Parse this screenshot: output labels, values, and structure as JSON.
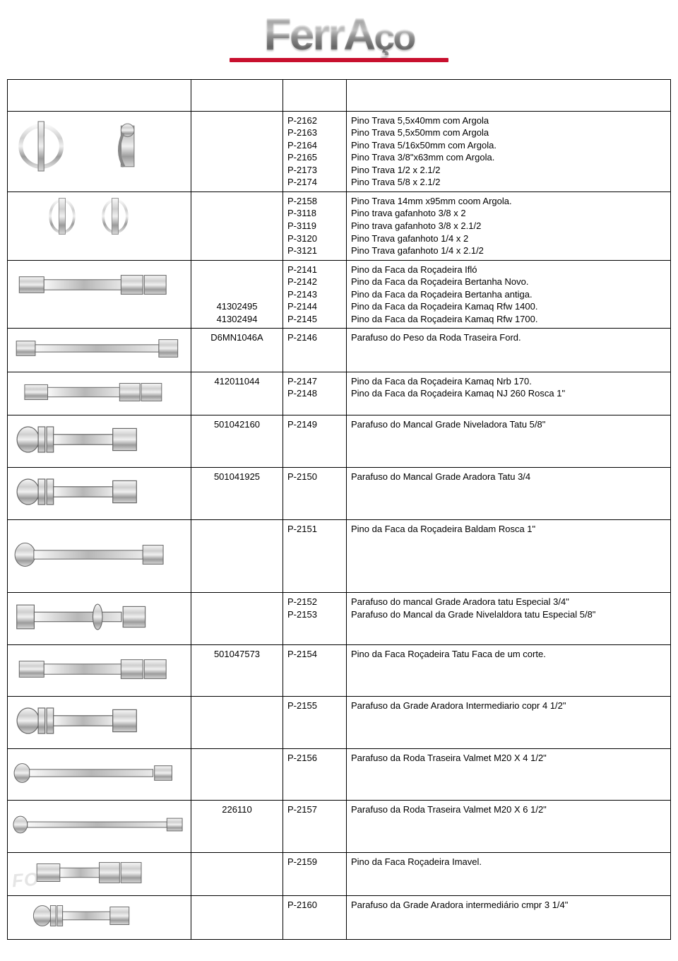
{
  "brand": {
    "name_html": "FerrAço",
    "part1": "Ferr",
    "part2": "A",
    "part3": "ço"
  },
  "colors": {
    "border": "#000000",
    "accent_red": "#c8102e",
    "metal_light": "#e8e8e8",
    "metal_mid": "#bfbfbf",
    "metal_dark": "#8a8a8a",
    "watermark": "rgba(180,180,180,.35)"
  },
  "table": {
    "columns": [
      "image",
      "oem",
      "code",
      "description"
    ],
    "rows": [
      {
        "img": "lynch-pin",
        "img_h": "tall",
        "oem": [
          ""
        ],
        "codes": [
          "P-2162",
          "P-2163",
          "P-2164",
          "P-2165",
          "P-2173",
          "P-2174"
        ],
        "descs": [
          "Pino Trava 5,5x40mm com Argola",
          "Pino Trava 5,5x50mm com Argola",
          "Pino Trava 5/16x50mm com Argola.",
          "Pino Trava 3/8\"x63mm com Argola.",
          "Pino Trava 1/2 x 2.1/2",
          "Pino Trava 5/8 x 2.1/2"
        ]
      },
      {
        "img": "wire-lock-pin",
        "img_h": "",
        "oem": [
          ""
        ],
        "codes": [
          "P-2158",
          "P-3118",
          "P-3119",
          "P-3120",
          "P-3121"
        ],
        "descs": [
          "Pino Trava 14mm x95mm coom Argola.",
          "Pino trava gafanhoto 3/8 x 2",
          "Pino trava gafanhoto 3/8 x 2.1/2",
          "Pino Trava gafanhoto 1/4 x 2",
          "Pino Trava gafanhoto 1/4 x 2.1/2"
        ]
      },
      {
        "img": "bolt-heavy",
        "img_h": "",
        "oem": [
          "",
          "",
          "",
          "41302495",
          "41302494"
        ],
        "codes": [
          "P-2141",
          "P-2142",
          "P-2143",
          "P-2144",
          "P-2145"
        ],
        "descs": [
          "Pino da Faca da Roçadeira Ifló",
          "Pino da Faca da Roçadeira Bertanha Novo.",
          "Pino da Faca da Roçadeira Bertanha antiga.",
          "Pino da Faca da Roçadeira Kamaq Rfw 1400.",
          "Pino da Faca da Roçadeira Kamaq Rfw 1700."
        ]
      },
      {
        "img": "bolt-long",
        "img_h": "short",
        "oem": [
          "D6MN1046A"
        ],
        "codes": [
          "P-2146"
        ],
        "descs": [
          "Parafuso do Peso da Roda Traseira Ford."
        ]
      },
      {
        "img": "bolt-heavy",
        "img_h": "short",
        "oem": [
          "412011044"
        ],
        "codes": [
          "P-2147",
          "P-2148"
        ],
        "descs": [
          "Pino da Faca da Roçadeira Kamaq Nrb 170.",
          "Pino da Faca da Roçadeira Kamaq NJ 260 Rosca 1\""
        ]
      },
      {
        "img": "bolt-washers",
        "img_h": "",
        "oem": [
          "501042160"
        ],
        "codes": [
          "P-2149"
        ],
        "descs": [
          "Parafuso do Mancal Grade Niveladora Tatu 5/8\""
        ]
      },
      {
        "img": "bolt-washers",
        "img_h": "",
        "oem": [
          "501041925"
        ],
        "codes": [
          "P-2150"
        ],
        "descs": [
          "Parafuso do Mancal Grade Aradora Tatu 3/4"
        ]
      },
      {
        "img": "bolt-carriage",
        "img_h": "tall",
        "oem": [
          ""
        ],
        "codes": [
          "P-2151"
        ],
        "descs": [
          "Pino da Faca da Roçadeira Baldam Rosca 1\""
        ]
      },
      {
        "img": "bolt-square-head",
        "img_h": "",
        "oem": [
          ""
        ],
        "codes": [
          "P-2152",
          "P-2153"
        ],
        "descs": [
          "Parafuso do mancal Grade Aradora tatu Especial 3/4\"",
          "Parafuso do Mancal da Grade Nivelaldora tatu Especial 5/8\""
        ]
      },
      {
        "img": "bolt-heavy",
        "img_h": "",
        "oem": [
          "501047573"
        ],
        "codes": [
          "P-2154"
        ],
        "descs": [
          "Pino da Faca Roçadeira Tatu Faca de um corte."
        ]
      },
      {
        "img": "bolt-washers",
        "img_h": "",
        "oem": [
          ""
        ],
        "codes": [
          "P-2155"
        ],
        "descs": [
          "Parafuso da Grade Aradora Intermediario copr 4 1/2\""
        ]
      },
      {
        "img": "bolt-carriage-long",
        "img_h": "",
        "oem": [
          ""
        ],
        "codes": [
          "P-2156"
        ],
        "descs": [
          "Parafuso da Roda Traseira Valmet M20 X 4 1/2\""
        ]
      },
      {
        "img": "bolt-carriage-xlong",
        "img_h": "",
        "oem": [
          "226110"
        ],
        "codes": [
          "P-2157"
        ],
        "descs": [
          "Parafuso da Roda Traseira Valmet M20 X 6 1/2\""
        ]
      },
      {
        "img": "bolt-heavy-short",
        "img_h": "short",
        "wm": "FO",
        "oem": [
          ""
        ],
        "codes": [
          "P-2159"
        ],
        "descs": [
          "Pino da Faca Roçadeira Imavel."
        ]
      },
      {
        "img": "bolt-washers",
        "img_h": "short",
        "oem": [
          ""
        ],
        "codes": [
          "P-2160"
        ],
        "descs": [
          "Parafuso da Grade Aradora intermediário cmpr 3 1/4\""
        ]
      }
    ]
  }
}
